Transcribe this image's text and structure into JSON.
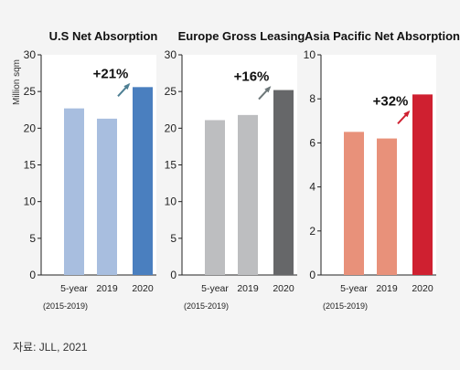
{
  "source": "자료: JLL, 2021",
  "y_axis_label": "Million sqm",
  "chart_data": [
    {
      "type": "bar",
      "title": "U.S Net Absorption",
      "categories": [
        "5-year",
        "2019",
        "2020"
      ],
      "category_sublabels": [
        "(2015-2019)",
        "",
        ""
      ],
      "values": [
        22.7,
        21.3,
        25.6
      ],
      "ylim": [
        0,
        30
      ],
      "yticks": [
        0,
        5,
        10,
        15,
        20,
        25,
        30
      ],
      "annotation": "+21%",
      "colors": [
        "#a8bedf",
        "#a8bedf",
        "#4a7fbf"
      ],
      "arrow_color": "#4e7f93"
    },
    {
      "type": "bar",
      "title": "Europe Gross Leasing",
      "categories": [
        "5-year",
        "2019",
        "2020"
      ],
      "category_sublabels": [
        "(2015-2019)",
        "",
        ""
      ],
      "values": [
        21.1,
        21.8,
        25.2
      ],
      "ylim": [
        0,
        30
      ],
      "yticks": [
        0,
        5,
        10,
        15,
        20,
        25,
        30
      ],
      "annotation": "+16%",
      "colors": [
        "#bdbec0",
        "#bdbec0",
        "#666769"
      ],
      "arrow_color": "#6d7779"
    },
    {
      "type": "bar",
      "title": "Asia Pacific Net Absorption",
      "categories": [
        "5-year",
        "2019",
        "2020"
      ],
      "category_sublabels": [
        "(2015-2019)",
        "",
        ""
      ],
      "values": [
        6.5,
        6.2,
        8.2
      ],
      "ylim": [
        0,
        10
      ],
      "yticks": [
        0,
        2,
        4,
        6,
        8,
        10
      ],
      "annotation": "+32%",
      "colors": [
        "#e8917a",
        "#e8917a",
        "#cf2030"
      ],
      "arrow_color": "#cf2030"
    }
  ]
}
